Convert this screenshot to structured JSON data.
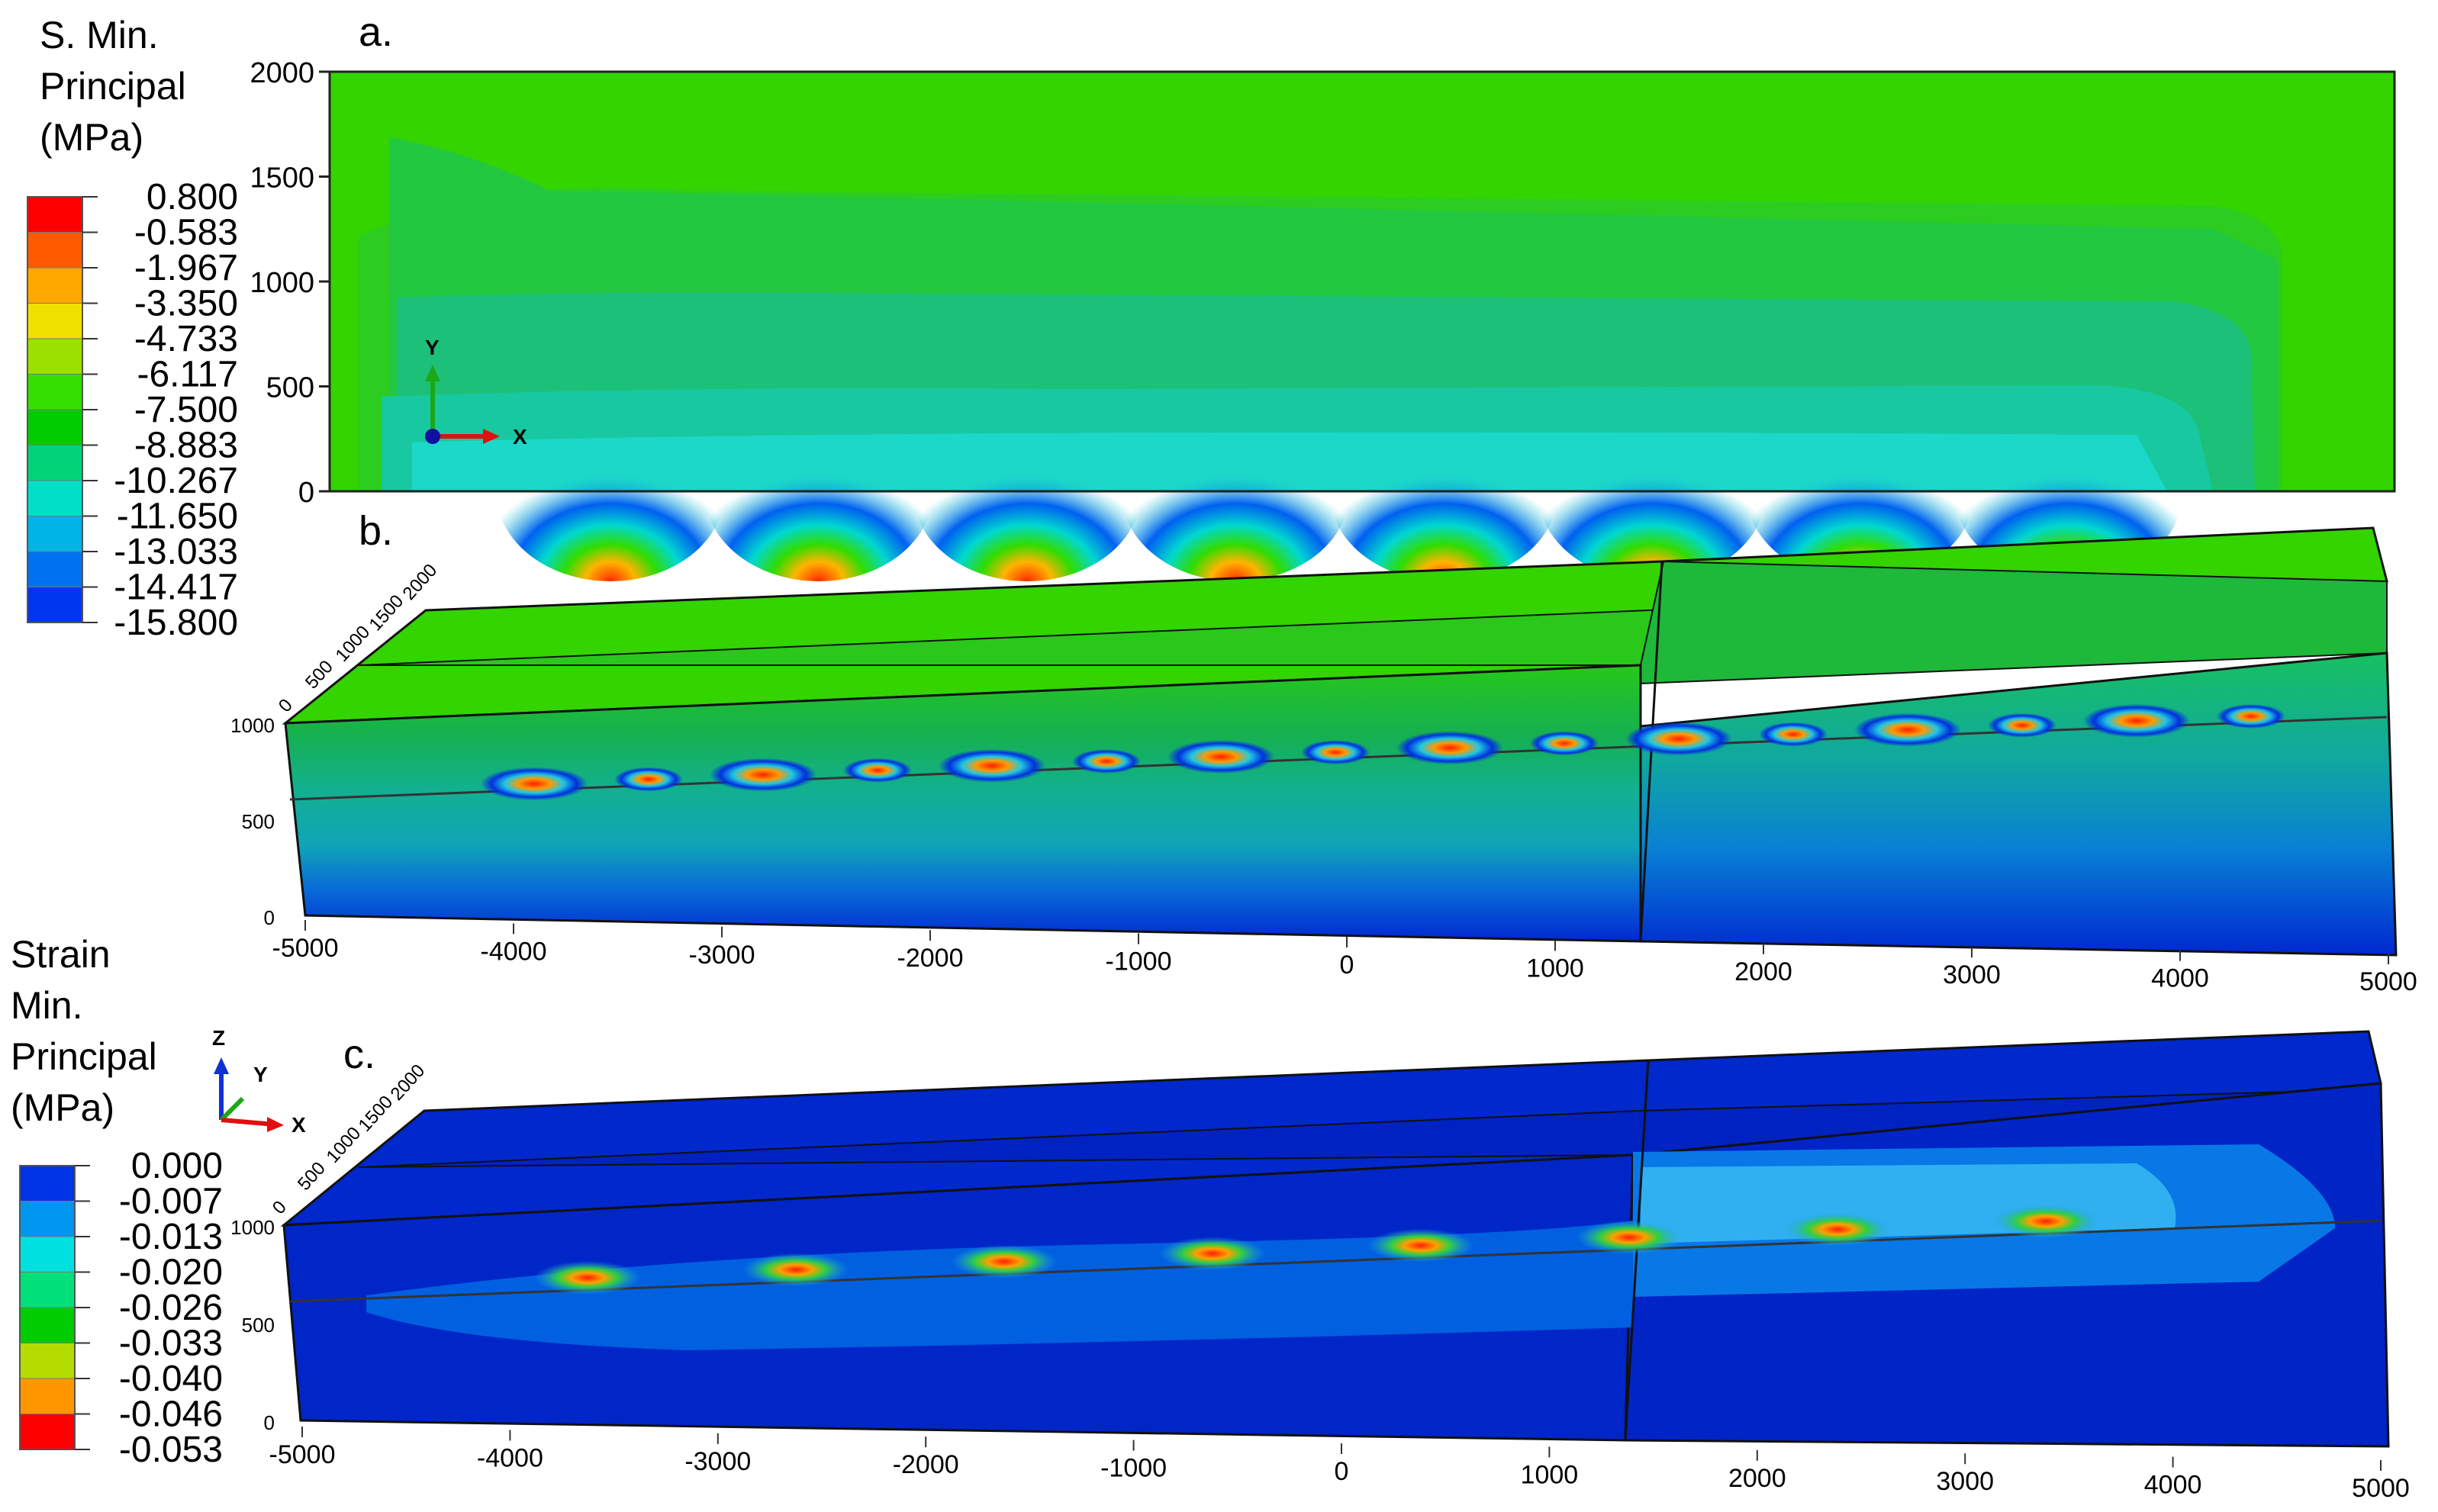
{
  "legend_stress": {
    "title": [
      "S. Min.",
      "Principal",
      "(MPa)"
    ],
    "values": [
      "0.800",
      "-0.583",
      "-1.967",
      "-3.350",
      "-4.733",
      "-6.117",
      "-7.500",
      "-8.883",
      "-10.267",
      "-11.650",
      "-13.033",
      "-14.417",
      "-15.800"
    ],
    "colors": [
      "#ff0000",
      "#ff5a00",
      "#ffa800",
      "#f0e000",
      "#9be000",
      "#33e000",
      "#00cc00",
      "#00d27a",
      "#00e0c8",
      "#00b4e6",
      "#0072f0",
      "#0036f0"
    ]
  },
  "legend_strain": {
    "title": [
      "Strain",
      "Min.",
      "Principal",
      "(MPa)"
    ],
    "values": [
      "0.000",
      "-0.007",
      "-0.013",
      "-0.020",
      "-0.026",
      "-0.033",
      "-0.040",
      "-0.046",
      "-0.053"
    ],
    "colors": [
      "#0032e6",
      "#0096f0",
      "#00e0e0",
      "#00e07a",
      "#00cc00",
      "#b4dc00",
      "#ff9600",
      "#ff0000"
    ]
  },
  "panels": {
    "a": {
      "label": "a.",
      "y_ticks": [
        "2000",
        "1500",
        "1000",
        "500",
        "0"
      ],
      "axis_labels": {
        "y": "Y",
        "x": "X"
      },
      "colors": {
        "background": "#33d400",
        "contour_1": "#22c840",
        "contour_2": "#1cc078",
        "contour_3": "#18c8a0",
        "contour_4": "#1cd8c8",
        "contour_5": "#24b8f0"
      },
      "highlights": 8
    },
    "b": {
      "label": "b.",
      "x_ticks": [
        "-5000",
        "-4000",
        "-3000",
        "-2000",
        "-1000",
        "0",
        "1000",
        "2000",
        "3000",
        "4000",
        "5000"
      ],
      "z_ticks": [
        "1000",
        "500",
        "0"
      ],
      "y_ticks": [
        "2000",
        "1500",
        "1000",
        "500",
        "0"
      ],
      "colors": {
        "top": "#33d400",
        "front_upper": "#1eb01e",
        "front_lower": "#12a890",
        "bottom": "#0028d0"
      }
    },
    "c": {
      "label": "c.",
      "x_ticks": [
        "-5000",
        "-4000",
        "-3000",
        "-2000",
        "-1000",
        "0",
        "1000",
        "2000",
        "3000",
        "4000",
        "5000"
      ],
      "z_ticks": [
        "1000",
        "500",
        "0"
      ],
      "y_ticks": [
        "2000",
        "1500",
        "1000",
        "500",
        "0"
      ],
      "axis_labels": {
        "z": "Z",
        "y": "Y",
        "x": "X"
      },
      "colors": {
        "base": "#0022c8",
        "mid": "#0060e6",
        "light": "#20a0f0"
      }
    }
  }
}
